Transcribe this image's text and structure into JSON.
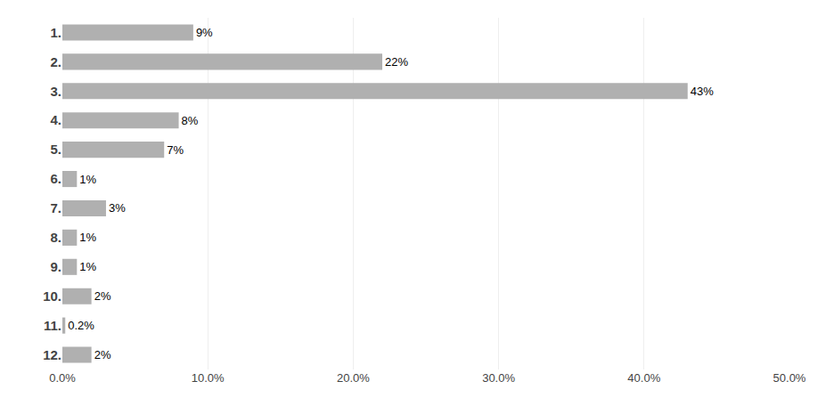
{
  "chart_data": {
    "type": "bar",
    "orientation": "horizontal",
    "categories": [
      "1.",
      "2.",
      "3.",
      "4.",
      "5.",
      "6.",
      "7.",
      "8.",
      "9.",
      "10.",
      "11.",
      "12."
    ],
    "values": [
      9,
      22,
      43,
      8,
      7,
      1,
      3,
      1,
      1,
      2,
      0.2,
      2
    ],
    "value_labels": [
      "9%",
      "22%",
      "43%",
      "8%",
      "7%",
      "1%",
      "3%",
      "1%",
      "1%",
      "2%",
      "0.2%",
      "2%"
    ],
    "data_labels": true,
    "color": "#b0b0b0",
    "xlim": [
      0,
      50
    ],
    "xticks": [
      {
        "value": 0,
        "label": "0.0%"
      },
      {
        "value": 10,
        "label": "10.0%"
      },
      {
        "value": 20,
        "label": "20.0%"
      },
      {
        "value": 30,
        "label": "30.0%"
      },
      {
        "value": 40,
        "label": "40.0%"
      },
      {
        "value": 50,
        "label": "50.0%"
      }
    ],
    "grid": true
  }
}
